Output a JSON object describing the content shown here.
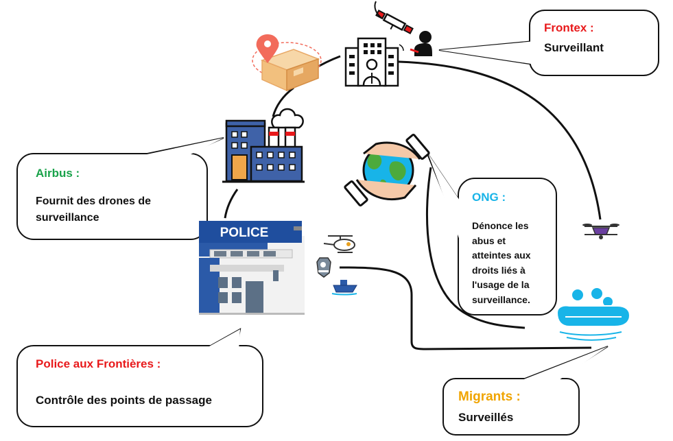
{
  "colors": {
    "red": "#e8191b",
    "green": "#19a24a",
    "blue": "#18b4e8",
    "orange": "#f0a400",
    "line": "#111111"
  },
  "frontex": {
    "title": "Frontex :",
    "desc": "Surveillant"
  },
  "airbus": {
    "title": "Airbus :",
    "desc_line1": "Fournit des drones de",
    "desc_line2": "surveillance"
  },
  "ong": {
    "title": "ONG :",
    "lines": [
      "Dénonce les",
      "abus et",
      "atteintes aux",
      "droits liés à",
      "l'usage de la",
      "surveillance."
    ]
  },
  "police": {
    "title": "Police aux Frontières :",
    "desc": "Contrôle des points de passage"
  },
  "migrants": {
    "title": "Migrants :",
    "desc": "Surveillés"
  },
  "police_station": {
    "sign": "POLICE"
  },
  "icons": [
    "package-location-icon",
    "office-building-icon",
    "satellite-icon",
    "operator-icon",
    "factory-icon",
    "hands-globe-icon",
    "police-station-icon",
    "helicopter-icon",
    "police-badge-icon",
    "patrol-boat-icon",
    "drone-icon",
    "migrant-boat-icon"
  ]
}
